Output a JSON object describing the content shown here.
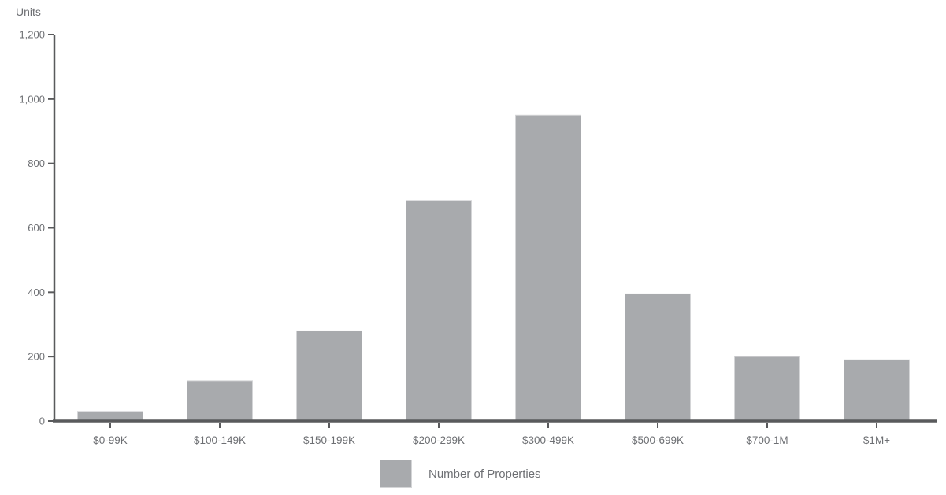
{
  "chart_data": {
    "type": "bar",
    "title": "",
    "xlabel": "",
    "ylabel": "Units",
    "categories": [
      "$0-99K",
      "$100-149K",
      "$150-199K",
      "$200-299K",
      "$300-499K",
      "$500-699K",
      "$700-1M",
      "$1M+"
    ],
    "series": [
      {
        "name": "Number of Properties",
        "values": [
          30,
          125,
          280,
          685,
          950,
          395,
          200,
          190
        ]
      }
    ],
    "ylim": [
      0,
      1200
    ],
    "ytick_interval": 200,
    "ytick_labels": [
      "0",
      "200",
      "400",
      "600",
      "800",
      "1,000",
      "1,200"
    ],
    "grid": false,
    "legend_position": "bottom-center",
    "colors": {
      "bar_fill": "#a8aaad",
      "bar_border": "#d4d5d7",
      "axis": "#595a5c",
      "text": "#6d6f73",
      "background": "#ffffff"
    }
  }
}
